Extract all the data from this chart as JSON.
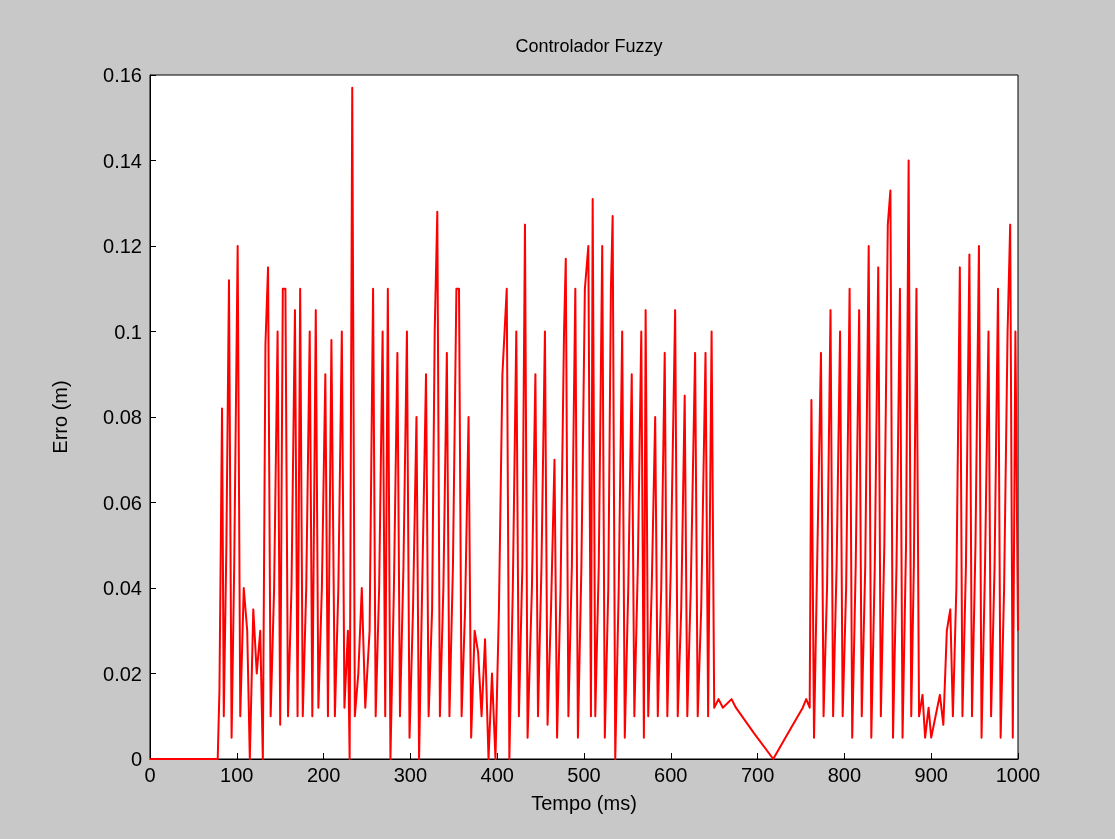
{
  "chart_data": {
    "type": "line",
    "title": "Controlador Fuzzy",
    "xlabel": "Tempo (ms)",
    "ylabel": "Erro (m)",
    "xlim": [
      0,
      1000
    ],
    "xticks": [
      0,
      100,
      200,
      300,
      400,
      500,
      600,
      700,
      800,
      900,
      1000
    ],
    "ylim": [
      0,
      0.16
    ],
    "yticks": [
      0,
      0.02,
      0.04,
      0.06,
      0.08,
      0.1,
      0.12,
      0.14,
      0.16
    ],
    "grid": false,
    "legend": false,
    "marker": "none",
    "line_style": "solid",
    "series": [
      {
        "color": "#ff0000",
        "x": [
          0,
          78,
          80,
          83,
          85,
          88,
          91,
          94,
          97,
          101,
          104,
          108,
          112,
          115,
          119,
          123,
          127,
          130,
          133,
          136,
          139,
          143,
          147,
          150,
          153,
          156,
          159,
          163,
          167,
          170,
          173,
          176,
          180,
          184,
          187,
          191,
          194,
          198,
          202,
          205,
          209,
          213,
          217,
          221,
          224,
          228,
          230,
          233,
          236,
          240,
          244,
          248,
          253,
          257,
          260,
          264,
          268,
          271,
          274,
          277,
          281,
          285,
          288,
          292,
          296,
          299,
          303,
          307,
          310,
          314,
          318,
          321,
          325,
          328,
          331,
          334,
          338,
          342,
          345,
          349,
          353,
          356,
          359,
          363,
          367,
          370,
          374,
          378,
          382,
          386,
          390,
          394,
          398,
          402,
          406,
          411,
          414,
          418,
          422,
          425,
          429,
          432,
          435,
          440,
          444,
          447,
          451,
          455,
          458,
          462,
          466,
          469,
          473,
          477,
          479,
          482,
          486,
          490,
          493,
          497,
          501,
          505,
          508,
          510,
          513,
          517,
          521,
          524,
          528,
          531,
          533,
          536,
          540,
          544,
          547,
          551,
          555,
          558,
          562,
          566,
          569,
          571,
          574,
          578,
          582,
          585,
          589,
          593,
          596,
          600,
          605,
          608,
          612,
          616,
          619,
          623,
          628,
          631,
          635,
          640,
          643,
          647,
          650,
          655,
          660,
          670,
          675,
          696,
          718,
          735,
          752,
          756,
          760,
          762,
          765,
          769,
          773,
          776,
          780,
          784,
          787,
          791,
          795,
          798,
          802,
          806,
          809,
          813,
          817,
          820,
          824,
          828,
          831,
          835,
          839,
          842,
          846,
          850,
          853,
          856,
          860,
          864,
          867,
          871,
          874,
          877,
          880,
          883,
          886,
          890,
          893,
          897,
          900,
          905,
          910,
          914,
          918,
          922,
          925,
          929,
          933,
          936,
          940,
          944,
          947,
          951,
          955,
          958,
          962,
          966,
          969,
          973,
          977,
          980,
          984,
          988,
          991,
          994,
          997,
          1000
        ],
        "values": [
          0,
          0,
          0.016,
          0.082,
          0.01,
          0.05,
          0.112,
          0.005,
          0.045,
          0.12,
          0.01,
          0.04,
          0.03,
          0,
          0.035,
          0.02,
          0.03,
          0,
          0.097,
          0.115,
          0.01,
          0.04,
          0.1,
          0.008,
          0.11,
          0.11,
          0.01,
          0.04,
          0.105,
          0.01,
          0.11,
          0.01,
          0.04,
          0.1,
          0.01,
          0.105,
          0.012,
          0.04,
          0.09,
          0.01,
          0.098,
          0.01,
          0.04,
          0.1,
          0.012,
          0.03,
          0,
          0.157,
          0.01,
          0.02,
          0.04,
          0.012,
          0.03,
          0.11,
          0.01,
          0.04,
          0.1,
          0.01,
          0.11,
          0,
          0.04,
          0.095,
          0.01,
          0.045,
          0.1,
          0.005,
          0.035,
          0.08,
          0,
          0.045,
          0.09,
          0.01,
          0.035,
          0.1,
          0.128,
          0.01,
          0.04,
          0.095,
          0.01,
          0.045,
          0.11,
          0.11,
          0.01,
          0.035,
          0.08,
          0.005,
          0.03,
          0.025,
          0.01,
          0.028,
          0,
          0.02,
          0,
          0.035,
          0.09,
          0.11,
          0,
          0.04,
          0.1,
          0.01,
          0.045,
          0.125,
          0.005,
          0.04,
          0.09,
          0.01,
          0.045,
          0.1,
          0.008,
          0.035,
          0.07,
          0.005,
          0.04,
          0.1,
          0.117,
          0.01,
          0.045,
          0.11,
          0.005,
          0.045,
          0.11,
          0.12,
          0.01,
          0.131,
          0.01,
          0.045,
          0.12,
          0.005,
          0.04,
          0.11,
          0.127,
          0,
          0.04,
          0.1,
          0.005,
          0.04,
          0.09,
          0.01,
          0.045,
          0.1,
          0.005,
          0.105,
          0.01,
          0.04,
          0.08,
          0.01,
          0.04,
          0.095,
          0.01,
          0.045,
          0.105,
          0.01,
          0.035,
          0.085,
          0.01,
          0.04,
          0.095,
          0.01,
          0.035,
          0.095,
          0.01,
          0.1,
          0.012,
          0.014,
          0.012,
          0.014,
          0.012,
          0.006,
          0,
          0.006,
          0.012,
          0.014,
          0.012,
          0.084,
          0.005,
          0.05,
          0.095,
          0.01,
          0.04,
          0.105,
          0.01,
          0.045,
          0.1,
          0.01,
          0.04,
          0.11,
          0.005,
          0.045,
          0.105,
          0.01,
          0.045,
          0.12,
          0.005,
          0.045,
          0.115,
          0.01,
          0.05,
          0.125,
          0.133,
          0.005,
          0.045,
          0.11,
          0.005,
          0.05,
          0.14,
          0.01,
          0.045,
          0.11,
          0.01,
          0.015,
          0.005,
          0.012,
          0.005,
          0.01,
          0.015,
          0.008,
          0.03,
          0.035,
          0.01,
          0.04,
          0.115,
          0.01,
          0.045,
          0.118,
          0.01,
          0.05,
          0.12,
          0.005,
          0.045,
          0.1,
          0.01,
          0.045,
          0.11,
          0.005,
          0.04,
          0.1,
          0.125,
          0.005,
          0.1,
          0.03
        ]
      }
    ]
  }
}
